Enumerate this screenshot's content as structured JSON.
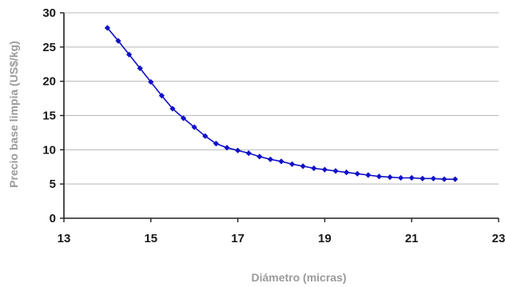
{
  "chart_data": {
    "type": "line",
    "xlabel": "Diámetro (micras)",
    "ylabel": "Precio base limpia (US$/kg)",
    "xlim": [
      13,
      23
    ],
    "ylim": [
      0,
      30
    ],
    "x_ticks": [
      13,
      15,
      17,
      19,
      21,
      23
    ],
    "y_ticks": [
      0,
      5,
      10,
      15,
      20,
      25,
      30
    ],
    "grid": "horizontal",
    "legend": "none",
    "series": [
      {
        "color": "#1010c8",
        "marker": "diamond",
        "x": [
          14.0,
          14.25,
          14.5,
          14.75,
          15.0,
          15.25,
          15.5,
          15.75,
          16.0,
          16.25,
          16.5,
          16.75,
          17.0,
          17.25,
          17.5,
          17.75,
          18.0,
          18.25,
          18.5,
          18.75,
          19.0,
          19.25,
          19.5,
          19.75,
          20.0,
          20.25,
          20.5,
          20.75,
          21.0,
          21.25,
          21.5,
          21.75,
          22.0
        ],
        "y": [
          27.8,
          25.9,
          23.9,
          21.9,
          19.9,
          17.9,
          16.0,
          14.6,
          13.3,
          12.0,
          10.9,
          10.3,
          9.9,
          9.5,
          9.0,
          8.6,
          8.3,
          7.9,
          7.6,
          7.3,
          7.1,
          6.9,
          6.7,
          6.5,
          6.3,
          6.1,
          6.0,
          5.9,
          5.9,
          5.8,
          5.8,
          5.7,
          5.7
        ]
      }
    ]
  }
}
